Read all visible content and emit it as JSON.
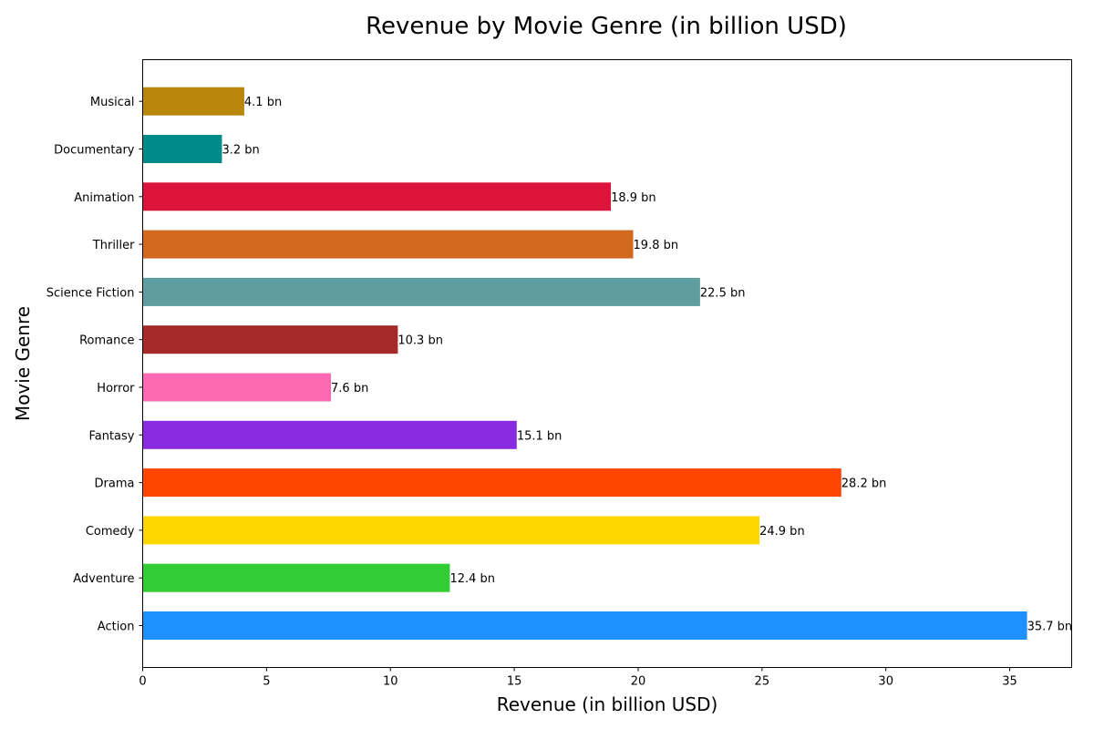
{
  "chart_data": {
    "type": "bar",
    "orientation": "horizontal",
    "title": "Revenue by Movie Genre (in billion USD)",
    "xlabel": "Revenue (in billion USD)",
    "ylabel": "Movie Genre",
    "xlim": [
      0,
      37.5
    ],
    "xticks": [
      0,
      5,
      10,
      15,
      20,
      25,
      30,
      35
    ],
    "grid": false,
    "legend": "none",
    "value_label_suffix": " bn",
    "categories": [
      "Action",
      "Adventure",
      "Comedy",
      "Drama",
      "Fantasy",
      "Horror",
      "Romance",
      "Science Fiction",
      "Thriller",
      "Animation",
      "Documentary",
      "Musical"
    ],
    "values": [
      35.7,
      12.4,
      24.9,
      28.2,
      15.1,
      7.6,
      10.3,
      22.5,
      19.8,
      18.9,
      3.2,
      4.1
    ],
    "colors": [
      "#1E90FF",
      "#32CD32",
      "#FFD700",
      "#FF4500",
      "#8A2BE2",
      "#FF69B4",
      "#A52A2A",
      "#5F9EA0",
      "#D2691E",
      "#DC143C",
      "#008B8B",
      "#B8860B"
    ]
  }
}
